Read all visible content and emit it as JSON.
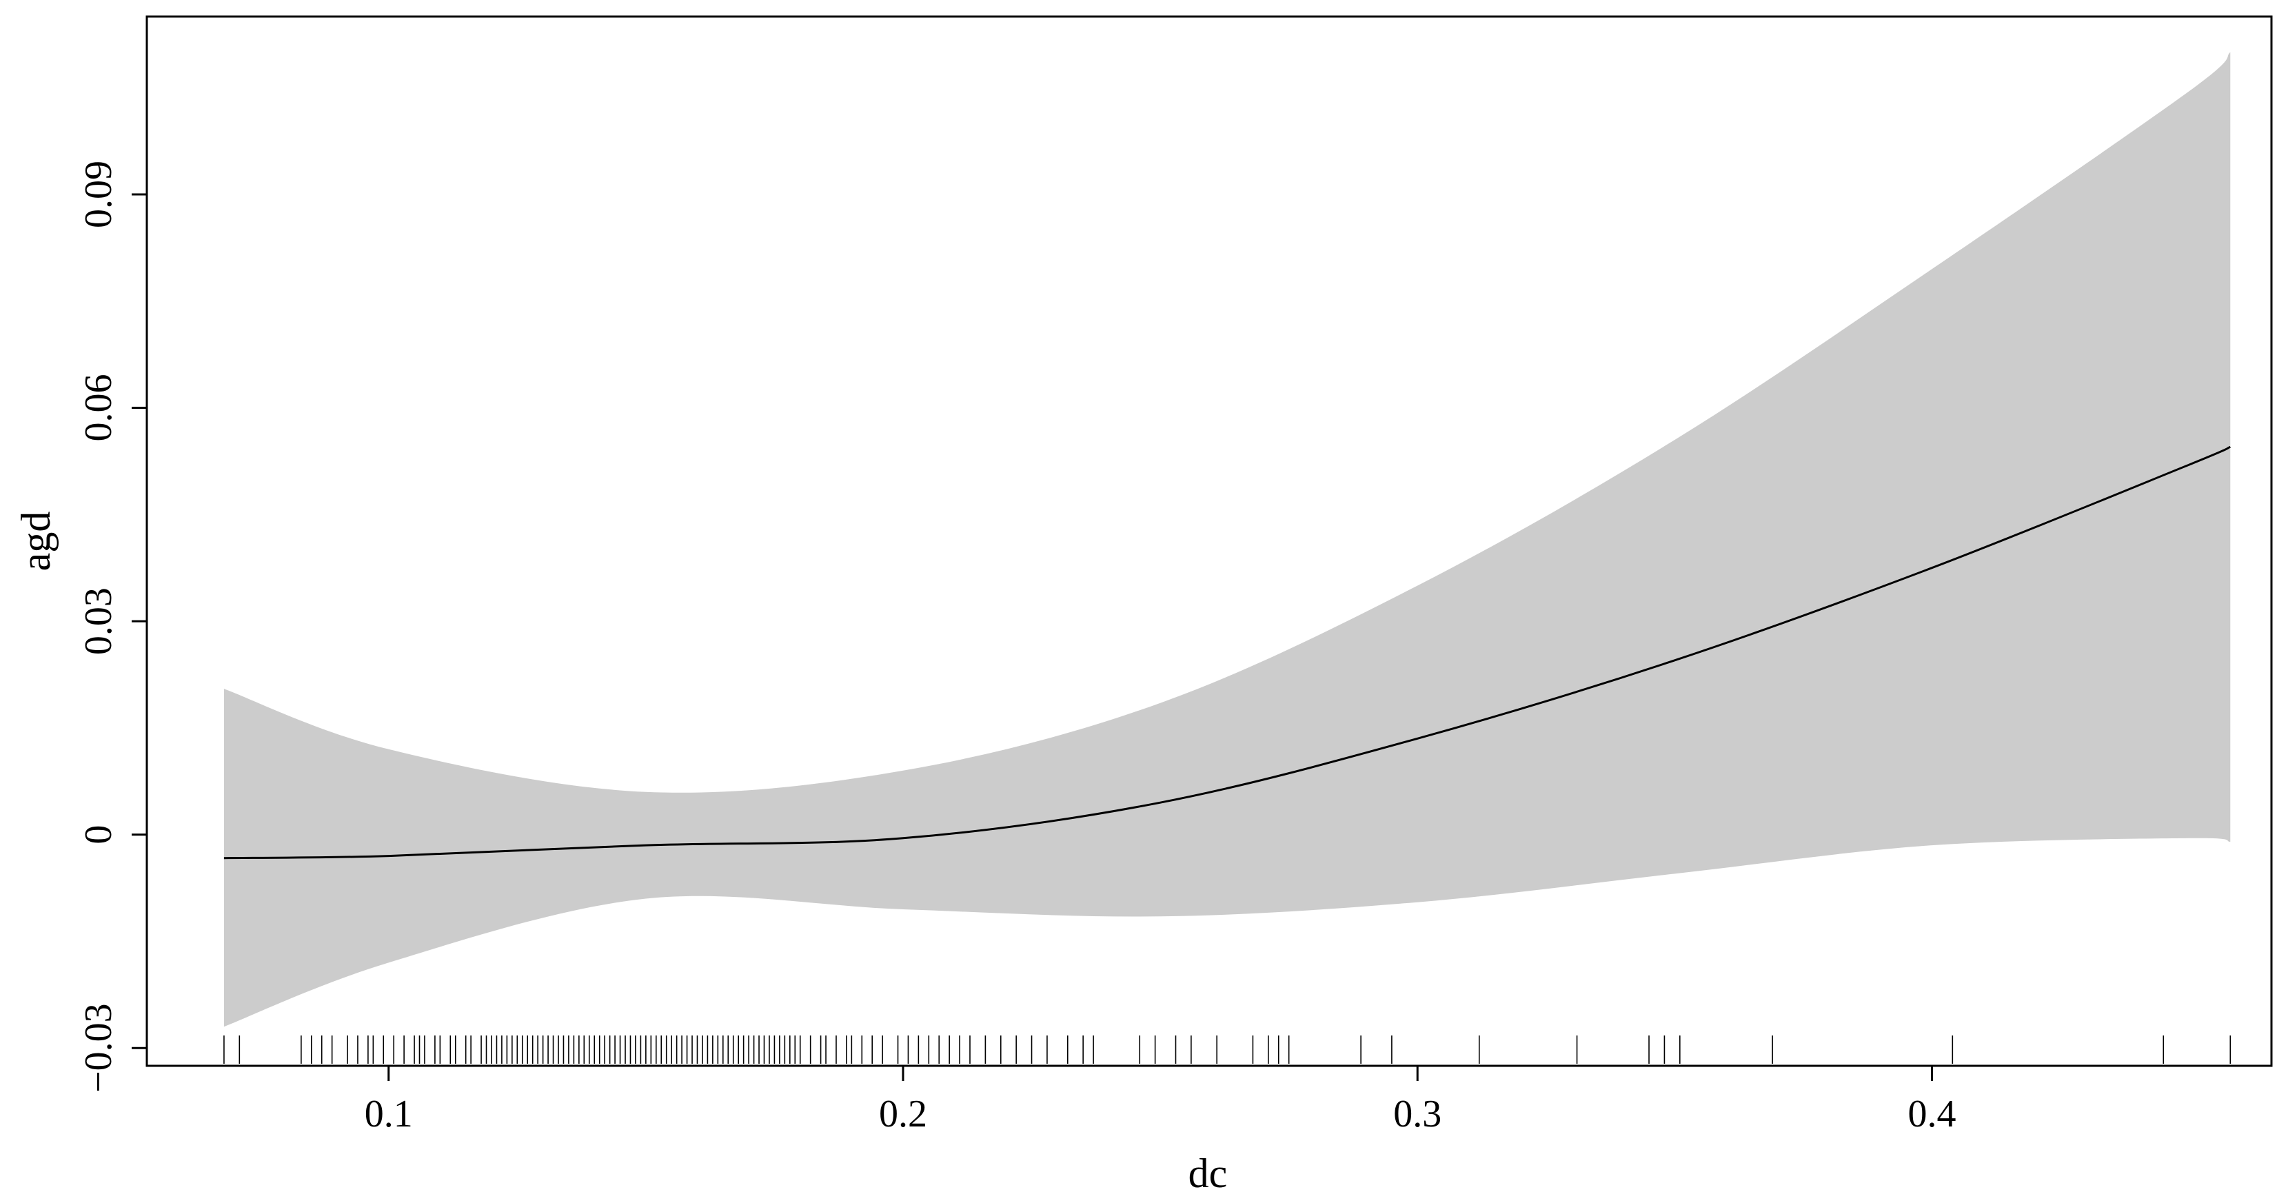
{
  "chart_data": {
    "type": "line",
    "title": "",
    "xlabel": "dc",
    "ylabel": "agd",
    "xlim": [
      0.053,
      0.466
    ],
    "ylim": [
      -0.0325,
      0.115
    ],
    "x_ticks": [
      0.1,
      0.2,
      0.3,
      0.4
    ],
    "x_tick_labels": [
      "0.1",
      "0.2",
      "0.3",
      "0.4"
    ],
    "y_ticks": [
      -0.03,
      0,
      0.03,
      0.06,
      0.09
    ],
    "y_tick_labels": [
      "−0.03",
      "0",
      "0.03",
      "0.06",
      "0.09"
    ],
    "grid": false,
    "legend": "none",
    "colors": {
      "fit_line": "#000000",
      "confidence_band": "#cccccc",
      "axes": "#000000"
    },
    "series": [
      {
        "role": "fit",
        "x": [
          0.068,
          0.1,
          0.15,
          0.2,
          0.25,
          0.3,
          0.35,
          0.4,
          0.45,
          0.458
        ],
        "y": [
          -0.0033,
          -0.003,
          -0.0015,
          -0.0005,
          0.0045,
          0.0135,
          0.0245,
          0.0375,
          0.052,
          0.0545
        ]
      },
      {
        "role": "upper_bound",
        "x": [
          0.068,
          0.1,
          0.15,
          0.2,
          0.25,
          0.3,
          0.35,
          0.4,
          0.45,
          0.458
        ],
        "y": [
          0.0205,
          0.012,
          0.006,
          0.009,
          0.0185,
          0.035,
          0.0555,
          0.0795,
          0.1045,
          0.11
        ]
      },
      {
        "role": "lower_bound",
        "x": [
          0.068,
          0.1,
          0.15,
          0.2,
          0.25,
          0.3,
          0.35,
          0.4,
          0.45,
          0.458
        ],
        "y": [
          -0.027,
          -0.018,
          -0.009,
          -0.0105,
          -0.0115,
          -0.0095,
          -0.0055,
          -0.0015,
          -0.0005,
          -0.001
        ]
      }
    ],
    "rug_x": [
      0.068,
      0.071,
      0.083,
      0.085,
      0.087,
      0.089,
      0.092,
      0.094,
      0.096,
      0.097,
      0.099,
      0.101,
      0.103,
      0.105,
      0.106,
      0.107,
      0.109,
      0.11,
      0.112,
      0.113,
      0.115,
      0.116,
      0.118,
      0.119,
      0.12,
      0.121,
      0.122,
      0.123,
      0.124,
      0.125,
      0.126,
      0.127,
      0.128,
      0.129,
      0.13,
      0.131,
      0.132,
      0.133,
      0.134,
      0.135,
      0.136,
      0.137,
      0.138,
      0.139,
      0.14,
      0.141,
      0.142,
      0.143,
      0.144,
      0.145,
      0.146,
      0.147,
      0.148,
      0.149,
      0.15,
      0.151,
      0.152,
      0.153,
      0.154,
      0.155,
      0.156,
      0.157,
      0.158,
      0.159,
      0.16,
      0.161,
      0.162,
      0.163,
      0.164,
      0.165,
      0.166,
      0.167,
      0.168,
      0.169,
      0.17,
      0.171,
      0.172,
      0.173,
      0.174,
      0.175,
      0.176,
      0.177,
      0.178,
      0.179,
      0.18,
      0.182,
      0.184,
      0.185,
      0.187,
      0.189,
      0.19,
      0.192,
      0.194,
      0.196,
      0.199,
      0.201,
      0.203,
      0.205,
      0.207,
      0.209,
      0.211,
      0.213,
      0.216,
      0.219,
      0.222,
      0.225,
      0.228,
      0.232,
      0.235,
      0.237,
      0.246,
      0.249,
      0.253,
      0.256,
      0.261,
      0.268,
      0.271,
      0.273,
      0.275,
      0.289,
      0.295,
      0.312,
      0.331,
      0.345,
      0.348,
      0.351,
      0.369,
      0.404,
      0.445,
      0.458
    ]
  }
}
